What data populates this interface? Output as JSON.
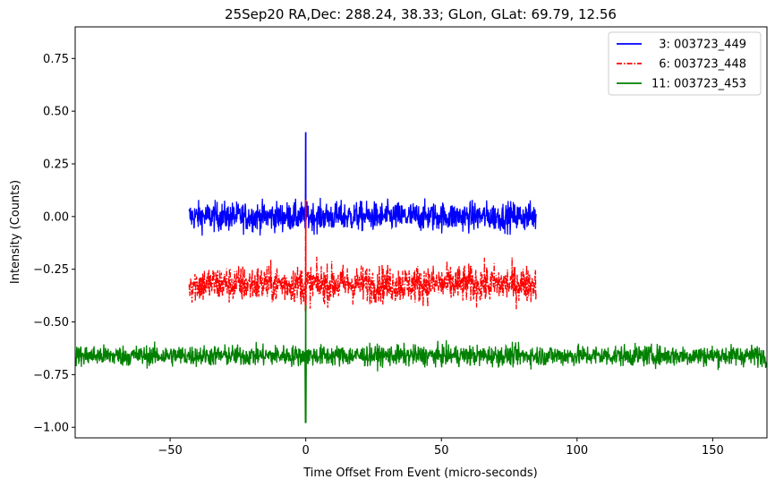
{
  "chart_data": {
    "type": "line",
    "title": "25Sep20 RA,Dec:  288.24,  38.33; GLon, GLat:   69.79,  12.56",
    "xlabel": "Time Offset From Event (micro-seconds)",
    "ylabel": "Intensity (Counts)",
    "xlim": [
      -85,
      170
    ],
    "ylim": [
      -1.05,
      0.9
    ],
    "xticks": [
      -50,
      0,
      50,
      100,
      150
    ],
    "xtick_labels": [
      "−50",
      "0",
      "50",
      "100",
      "150"
    ],
    "yticks": [
      0.75,
      0.5,
      0.25,
      0.0,
      -0.25,
      -0.5,
      -0.75,
      -1.0
    ],
    "ytick_labels": [
      "0.75",
      "0.50",
      "0.25",
      "0.00",
      "−0.25",
      "−0.50",
      "−0.75",
      "−1.00"
    ],
    "legend_position": "top-right",
    "series": [
      {
        "name": "  3: 003723_449",
        "color": "#0000ff",
        "dash": "solid",
        "x_start": -43,
        "x_end": 85,
        "baseline": 0.0,
        "noise": 0.035,
        "spike_x": 0,
        "spike_min": -0.02,
        "spike_max": 0.4
      },
      {
        "name": "  6: 003723_448",
        "color": "#ff0000",
        "dash": "dashdot",
        "x_start": -43,
        "x_end": 85,
        "baseline": -0.32,
        "noise": 0.045,
        "spike_x": 0,
        "spike_min": -0.45,
        "spike_max": 0.08
      },
      {
        "name": "11: 003723_453",
        "color": "#008000",
        "dash": "solid",
        "x_start": -85,
        "x_end": 170,
        "baseline": -0.66,
        "noise": 0.025,
        "spike_x": 0,
        "spike_min": -0.98,
        "spike_max": -0.42
      }
    ]
  }
}
